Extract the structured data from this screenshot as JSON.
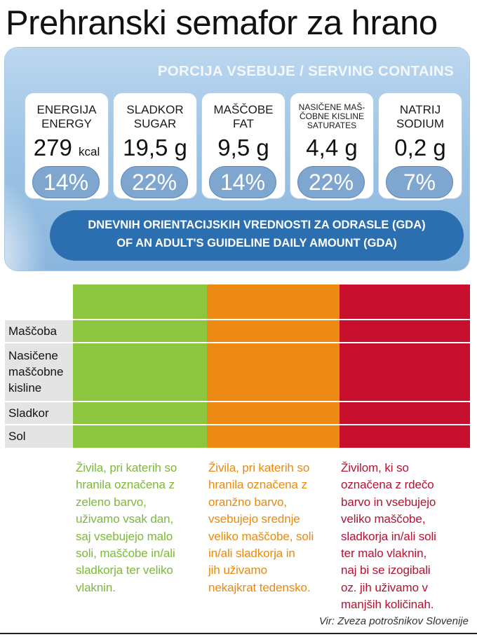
{
  "title": "Prehranski semafor za hrano",
  "serving_label": {
    "header": "PORCIJA VSEBUJE / SERVING CONTAINS",
    "nutrients": [
      {
        "label_sl": "ENERGIJA",
        "label_en": "ENERGY",
        "value": "279",
        "unit": "kcal",
        "percent": "14%"
      },
      {
        "label_sl": "SLADKOR",
        "label_en": "SUGAR",
        "value": "19,5 g",
        "unit": "",
        "percent": "22%"
      },
      {
        "label_sl": "MAŠČOBE",
        "label_en": "FAT",
        "value": "9,5 g",
        "unit": "",
        "percent": "14%"
      },
      {
        "label_sl": "NASIČENE MAŠ-",
        "label_sl2": "ČOBNE KISLINE",
        "label_en": "SATURATES",
        "value": "4,4 g",
        "unit": "",
        "percent": "22%"
      },
      {
        "label_sl": "NATRIJ",
        "label_en": "SODIUM",
        "value": "0,2 g",
        "unit": "",
        "percent": "7%"
      }
    ],
    "gda_line1": "DNEVNIH ORIENTACIJSKIH VREDNOSTI ZA ODRASLE (GDA)",
    "gda_line2": "OF AN ADULT'S GUIDELINE DAILY AMOUNT (GDA)"
  },
  "traffic_table": {
    "colors": {
      "green": "#8cc63e",
      "orange": "#ec8a14",
      "red": "#c8102e"
    },
    "rows": [
      "Maščoba",
      "Nasičene",
      "maščobne",
      "kisline",
      "Sladkor",
      "Sol"
    ]
  },
  "descriptions": {
    "green": [
      "Živila, pri katerih so",
      "hranila označena z",
      "zeleno barvo,",
      "uživamo vsak dan,",
      "saj vsebujejo malo",
      "soli, maščobe in/ali",
      "sladkorja ter veliko",
      "vlaknin."
    ],
    "orange": [
      "Živila, pri katerih so",
      "hranila označena z",
      "oranžno barvo,",
      "vsebujejo srednje",
      "veliko maščobe, soli",
      "in/ali sladkorja in",
      "jih uživamo",
      "nekajkrat tedensko."
    ],
    "red": [
      "Živilom, ki so",
      "označena z rdečo",
      "barvo in vsebujejo",
      "veliko maščobe,",
      "sladkorja in/ali soli",
      "ter malo vlaknin,",
      "naj bi se izogibali",
      "oz. jih uživamo v",
      "manjših količinah."
    ]
  },
  "source": "Vir: Zveza potrošnikov Slovenije"
}
